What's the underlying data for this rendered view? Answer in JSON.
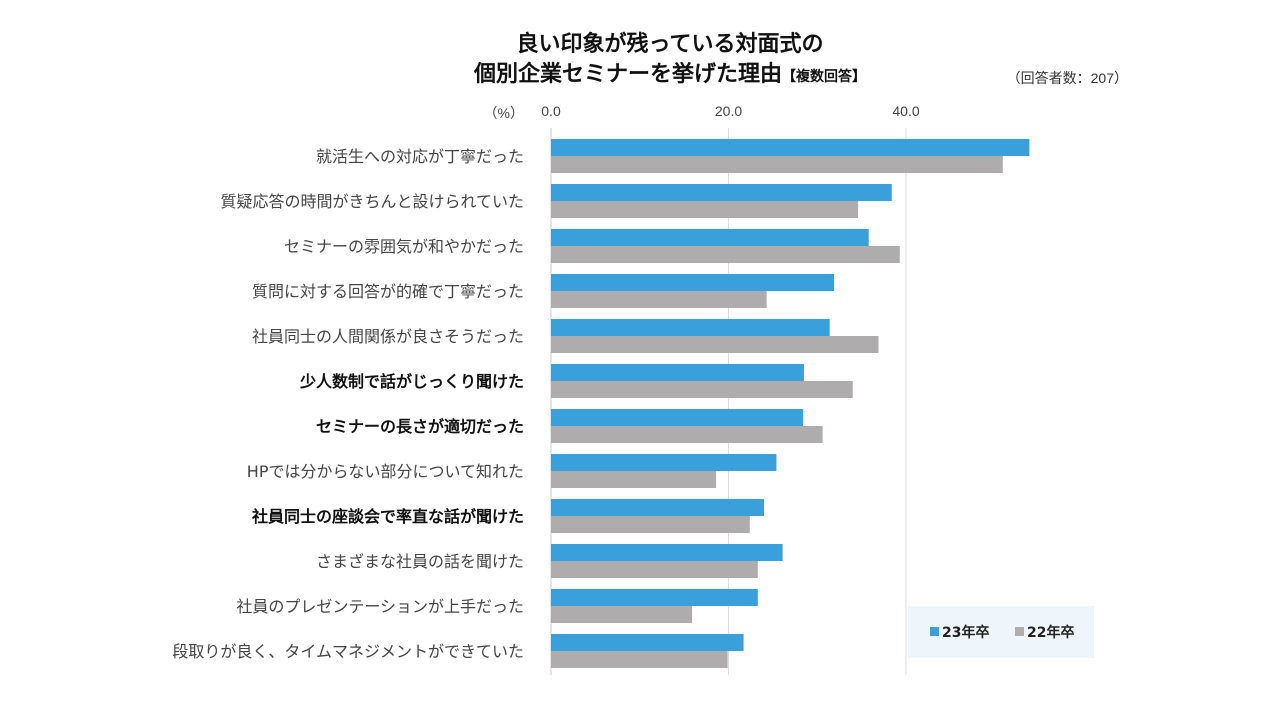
{
  "chart_data": {
    "type": "bar",
    "orientation": "horizontal",
    "title_line1": "良い印象が残っている対面式の",
    "title_line2": "個別企業セミナーを挙げた理由",
    "title_tag": "【複数回答】",
    "note": "（回答者数：207）",
    "unit_label": "（%）",
    "xlim": [
      0,
      60
    ],
    "xticks": [
      "0.0",
      "20.0",
      "40.0"
    ],
    "xtick_values": [
      0,
      20,
      40
    ],
    "grid": true,
    "legend_position": "bottom-right",
    "categories": [
      "就活生への対応が丁寧だった",
      "質疑応答の時間がきちんと設けられていた",
      "セミナーの雰囲気が和やかだった",
      "質問に対する回答が的確で丁寧だった",
      "社員同士の人間関係が良さそうだった",
      "少人数制で話がじっくり聞けた",
      "セミナーの長さが適切だった",
      "HPでは分からない部分について知れた",
      "社員同士の座談会で率直な話が聞けた",
      "さまざまな社員の話を聞けた",
      "社員のプレゼンテーションが上手だった",
      "段取りが良く、タイムマネジメントができていた"
    ],
    "bold_categories": [
      "少人数制で話がじっくり聞けた",
      "セミナーの長さが適切だった",
      "社員同士の座談会で率直な話が聞けた"
    ],
    "series": [
      {
        "name": "23年卒",
        "color": "#39a0dc",
        "values": [
          53.9,
          38.4,
          35.8,
          31.9,
          31.4,
          28.5,
          28.4,
          25.4,
          24.0,
          26.1,
          23.3,
          21.7
        ]
      },
      {
        "name": "22年卒",
        "color": "#aeacac",
        "values": [
          50.9,
          34.6,
          39.3,
          24.3,
          36.9,
          34.0,
          30.6,
          18.6,
          22.4,
          23.3,
          15.9,
          19.9
        ]
      }
    ]
  }
}
